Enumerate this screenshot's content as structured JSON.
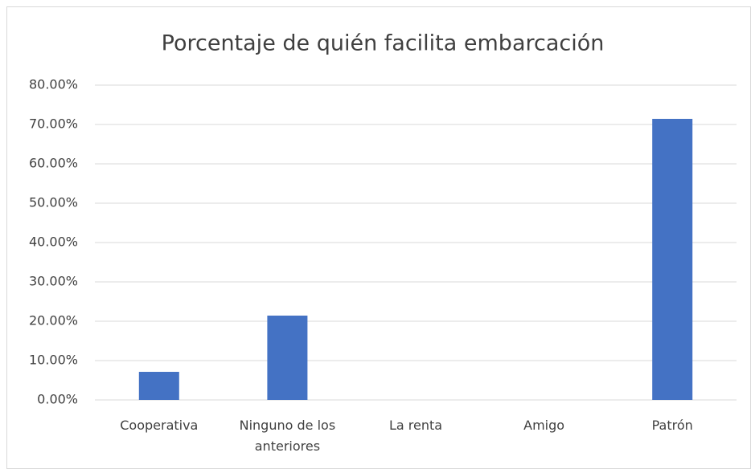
{
  "chart_data": {
    "type": "bar",
    "title": "Porcentaje de quién facilita embarcación",
    "categories": [
      "Cooperativa",
      "Ninguno de los anteriores",
      "La renta",
      "Amigo",
      "Patrón"
    ],
    "values": [
      7.14,
      21.43,
      0,
      0,
      71.43
    ],
    "color": "#4472c4",
    "ylim": [
      0,
      80
    ],
    "yticks": [
      {
        "value": 0,
        "label": "0.00%"
      },
      {
        "value": 10,
        "label": "10.00%"
      },
      {
        "value": 20,
        "label": "20.00%"
      },
      {
        "value": 30,
        "label": "30.00%"
      },
      {
        "value": 40,
        "label": "40.00%"
      },
      {
        "value": 50,
        "label": "50.00%"
      },
      {
        "value": 60,
        "label": "60.00%"
      },
      {
        "value": 70,
        "label": "70.00%"
      },
      {
        "value": 80,
        "label": "80.00%"
      }
    ],
    "grid": true
  }
}
